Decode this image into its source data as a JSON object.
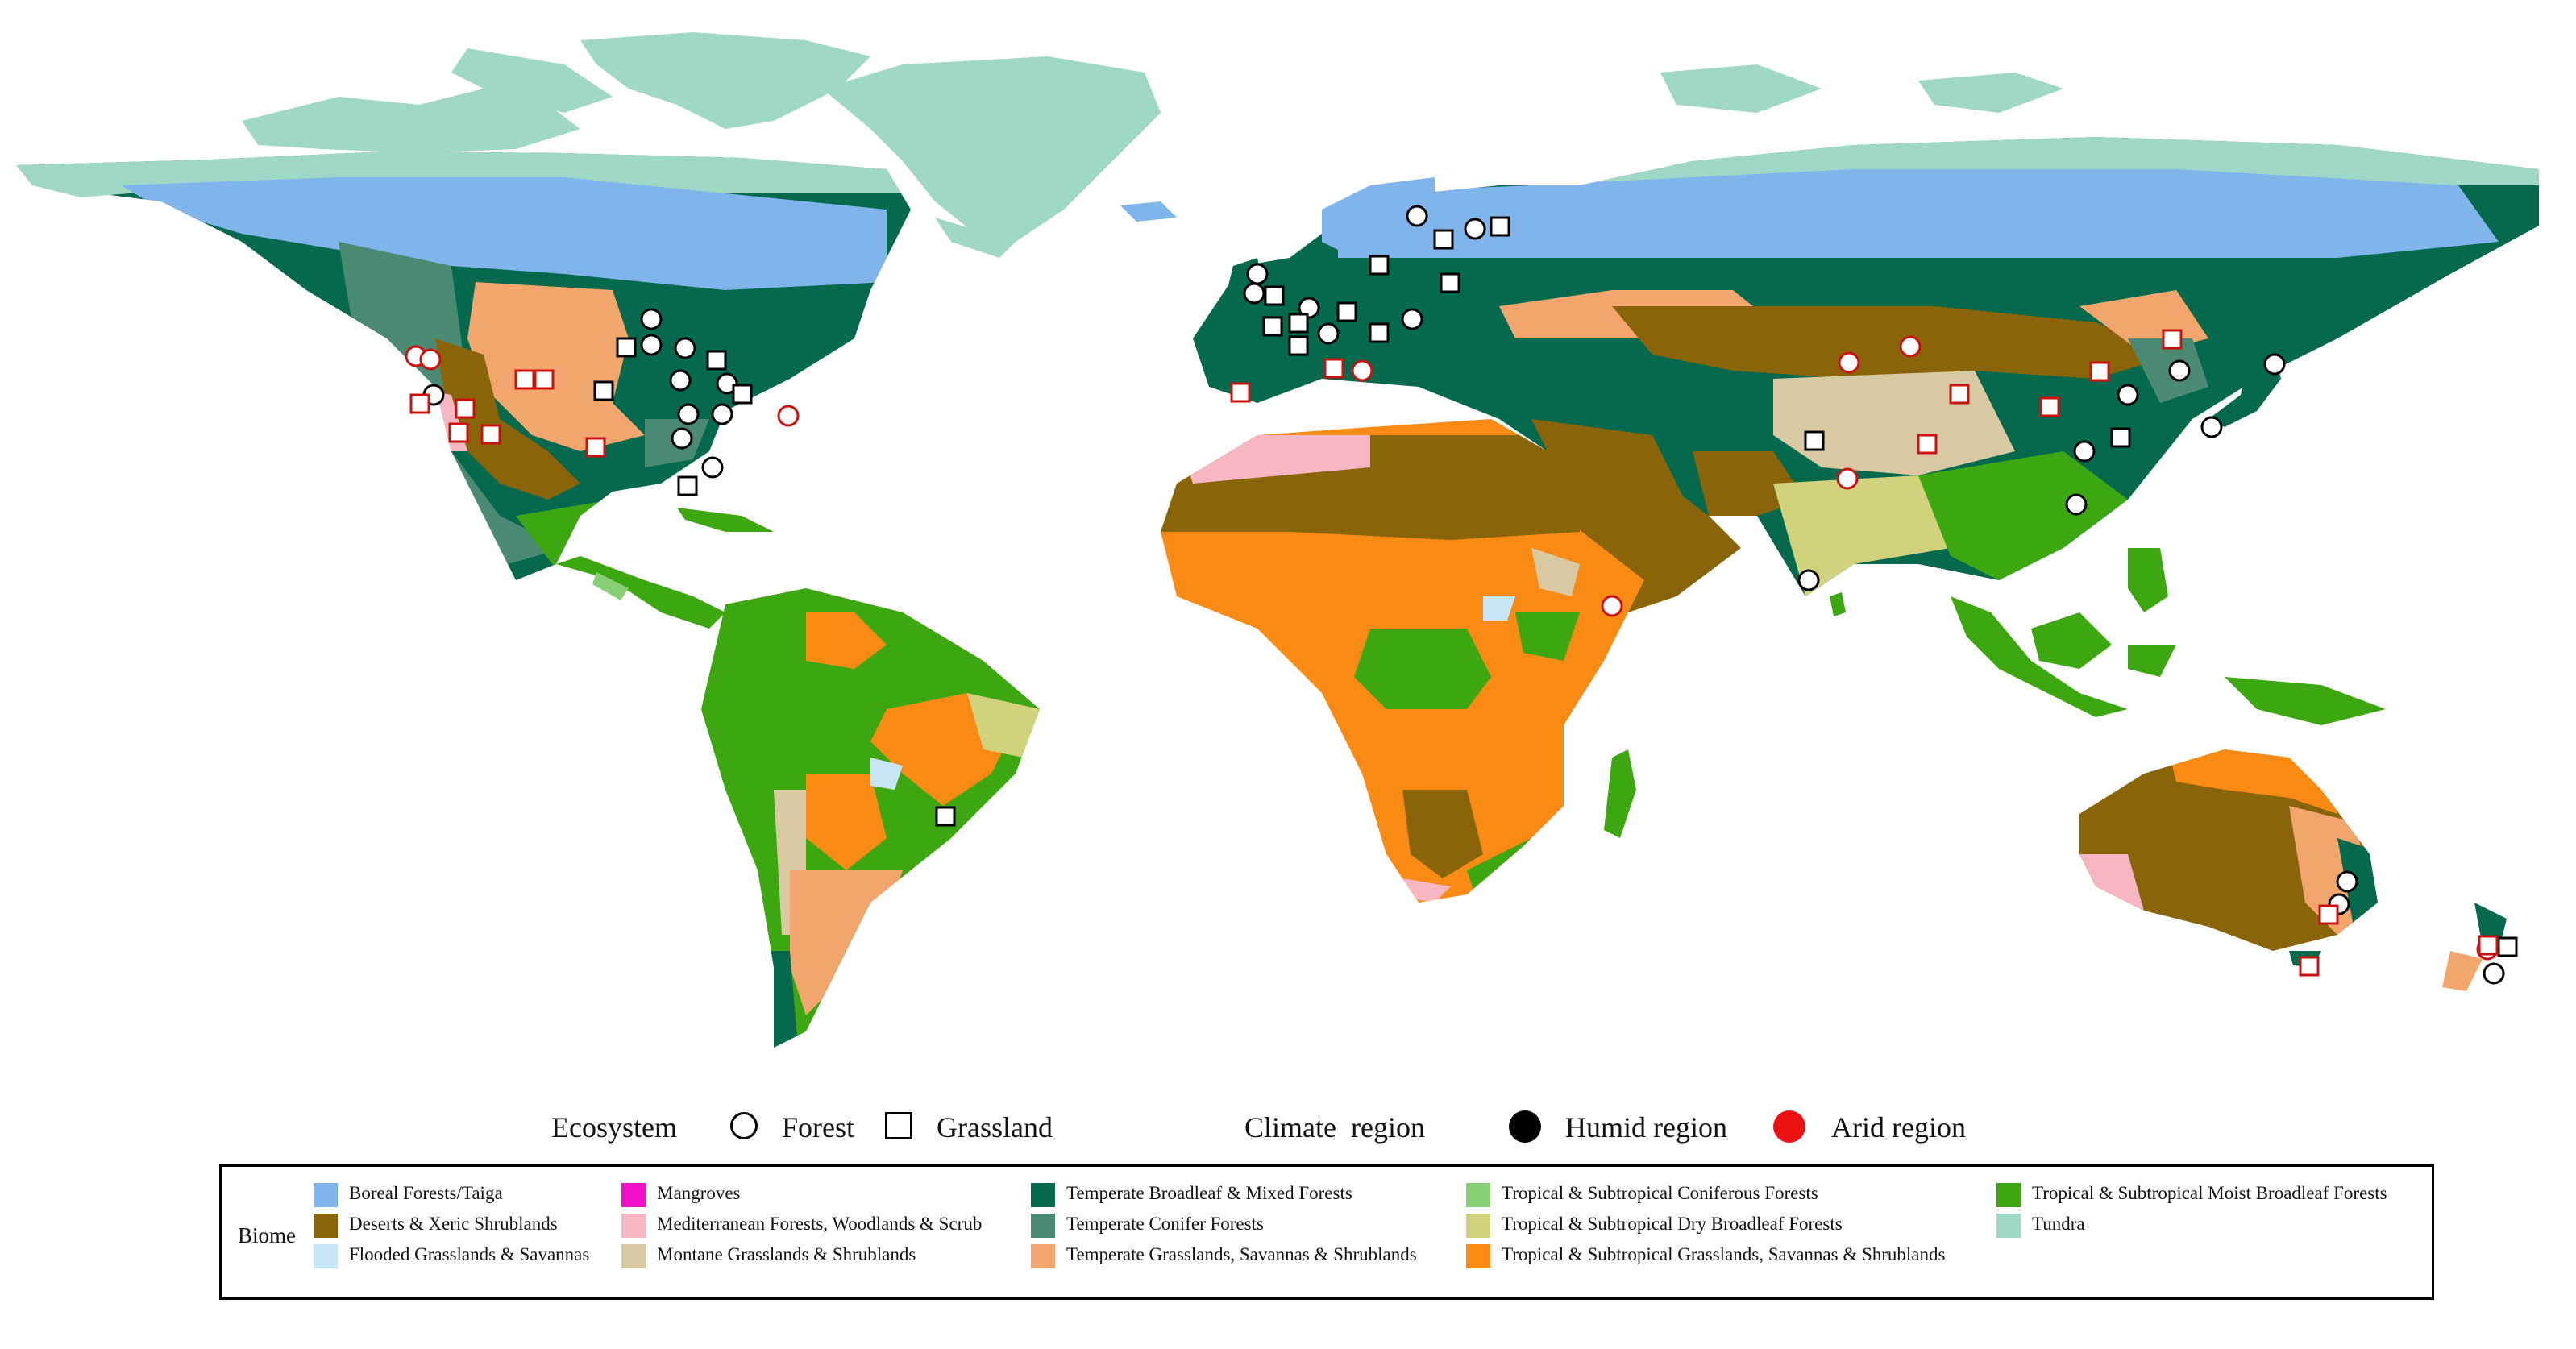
{
  "colors": {
    "boreal": "#7fb5ea",
    "desert": "#8a6408",
    "flooded": "#c6e6f6",
    "mangrove": "#f20fc8",
    "mediterranean": "#f6b6c2",
    "montane": "#d8c9a2",
    "temp_broadleaf": "#04694d",
    "temp_conifer": "#4b8a72",
    "temp_grass": "#f2a66e",
    "trop_conifer": "#88d076",
    "trop_dry": "#d0d27c",
    "trop_grass": "#f98b14",
    "trop_moist": "#3da712",
    "tundra": "#9fd8c7",
    "humid": "#000000",
    "arid": "#ee1111"
  },
  "legend": {
    "ecosystem_label": "Ecosystem",
    "forest_label": "Forest",
    "grassland_label": "Grassland",
    "climate_label": "Climate  region",
    "humid_label": "Humid region",
    "arid_label": "Arid region",
    "biome_title": "Biome",
    "biomes": [
      {
        "label": "Boreal Forests/Taiga",
        "color": "#7fb5ea"
      },
      {
        "label": "Deserts & Xeric Shrublands",
        "color": "#8a6408"
      },
      {
        "label": "Flooded Grasslands & Savannas",
        "color": "#c6e6f6"
      },
      {
        "label": "Mangroves",
        "color": "#f20fc8"
      },
      {
        "label": "Mediterranean Forests, Woodlands & Scrub",
        "color": "#f6b6c2"
      },
      {
        "label": "Montane Grasslands & Shrublands",
        "color": "#d8c9a2"
      },
      {
        "label": "Temperate Broadleaf & Mixed Forests",
        "color": "#04694d"
      },
      {
        "label": "Temperate Conifer Forests",
        "color": "#4b8a72"
      },
      {
        "label": "Temperate Grasslands, Savannas & Shrublands",
        "color": "#f2a66e"
      },
      {
        "label": "Tropical & Subtropical Coniferous Forests",
        "color": "#88d076"
      },
      {
        "label": "Tropical & Subtropical Dry Broadleaf Forests",
        "color": "#d0d27c"
      },
      {
        "label": "Tropical & Subtropical Grasslands, Savannas & Shrublands",
        "color": "#f98b14"
      },
      {
        "label": "Tropical & Subtropical Moist Broadleaf Forests",
        "color": "#3da712"
      },
      {
        "label": "Tundra",
        "color": "#9fd8c7"
      }
    ]
  }
}
